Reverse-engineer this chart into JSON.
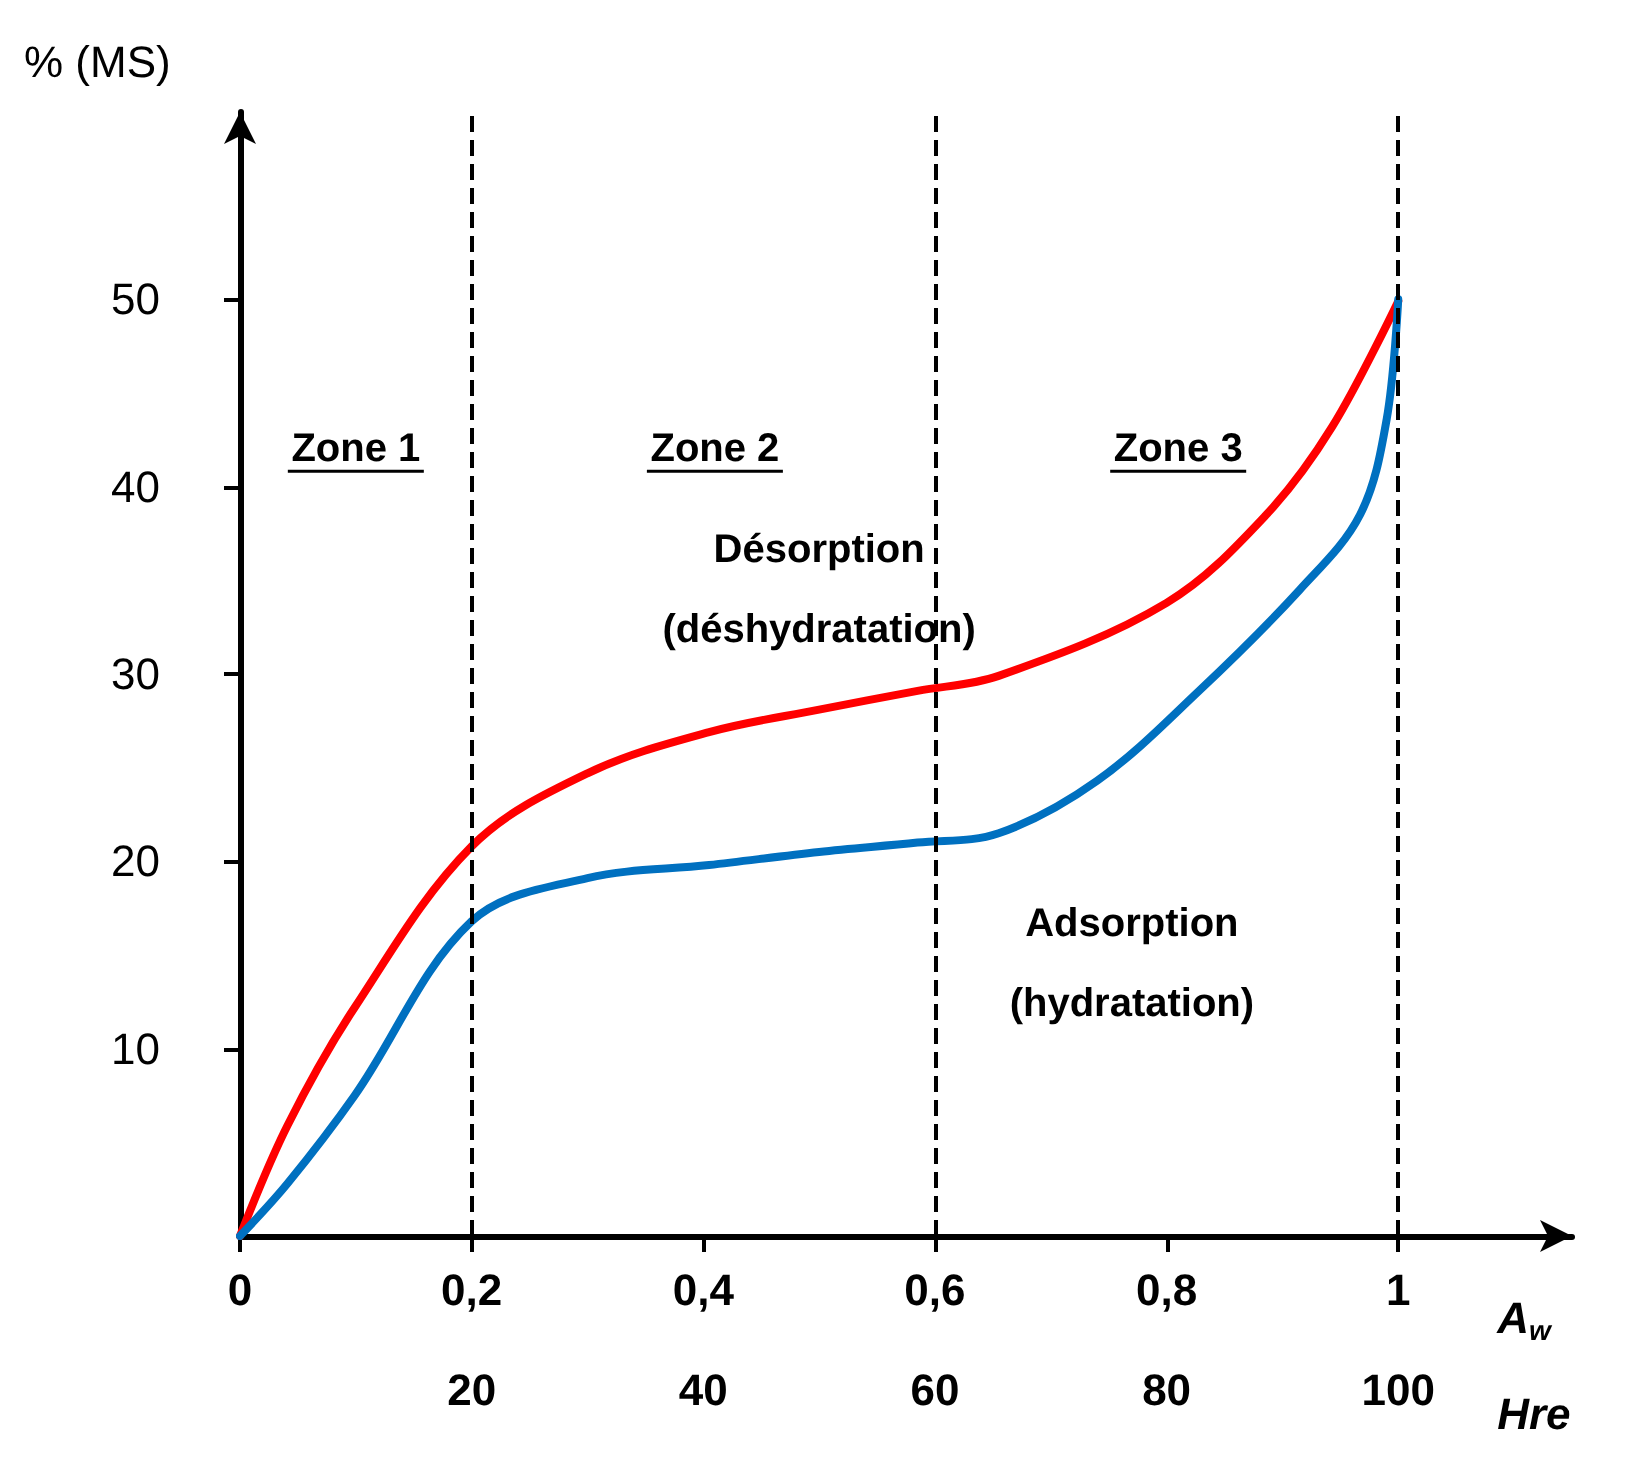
{
  "chart_data": {
    "type": "line",
    "xlabel": "A$_{w}$",
    "ylabel": "% (MS)",
    "x2label": "Hre",
    "xlim": [
      0,
      1.15
    ],
    "ylim": [
      0,
      60
    ],
    "xticks": [
      {
        "value": 0,
        "label": "0"
      },
      {
        "value": 0.2,
        "label": "0,2"
      },
      {
        "value": 0.4,
        "label": "0,4"
      },
      {
        "value": 0.6,
        "label": "0,6"
      },
      {
        "value": 0.8,
        "label": "0,8"
      },
      {
        "value": 1,
        "label": "1"
      }
    ],
    "yticks": [
      10,
      20,
      30,
      40,
      50
    ],
    "x2lim": [
      0,
      115
    ],
    "x2ticks": [
      20,
      40,
      60,
      80,
      100
    ],
    "series": [
      {
        "color": "#ff0000",
        "x": [
          0,
          0.041,
          0.099,
          0.2,
          0.3,
          0.405,
          0.5,
          0.585,
          0.655,
          0.8,
          0.886,
          0.943,
          1.0
        ],
        "values": [
          0,
          5.9,
          12.2,
          20.8,
          24.7,
          26.9,
          28.1,
          29.1,
          29.9,
          33.8,
          38.5,
          43.2,
          49.9
        ]
      },
      {
        "color": "#0070c0",
        "x": [
          0,
          0.041,
          0.099,
          0.2,
          0.3,
          0.405,
          0.5,
          0.585,
          0.655,
          0.74,
          0.828,
          0.915,
          0.967,
          0.99,
          1.0
        ],
        "values": [
          0,
          2.8,
          7.5,
          16.8,
          19.1,
          19.8,
          20.5,
          21.0,
          21.5,
          24.3,
          29.1,
          34.5,
          38.5,
          43.6,
          50
        ]
      }
    ],
    "ref_lines": [
      {
        "axis": "x",
        "value": 0.2,
        "line_style": "dashed",
        "color": "#000000"
      },
      {
        "axis": "x",
        "value": 0.6,
        "line_style": "dashed",
        "color": "#000000"
      },
      {
        "axis": "x",
        "value": 1.0,
        "line_style": "dashed",
        "color": "#000000"
      }
    ],
    "annotations": [
      "Zone 1",
      "Zone 2",
      "Zone 3",
      "Désorption\n(déshydratation)",
      "Adsorption\n(hydratation)"
    ],
    "grid": false,
    "marker": "none",
    "line_style": "solid"
  }
}
